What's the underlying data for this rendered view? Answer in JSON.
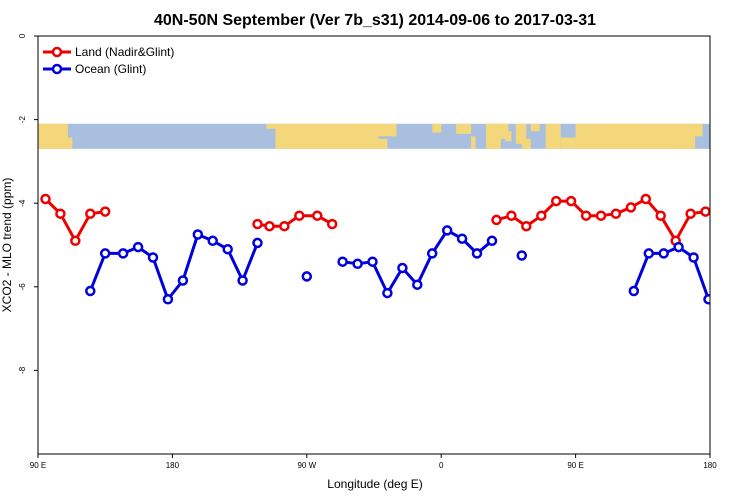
{
  "chart_data": {
    "type": "line",
    "title": "40N-50N September (Ver 7b_s31)   2014-09-06 to 2017-03-31",
    "xlabel": "Longitude (deg E)",
    "ylabel": "XCO2 - MLO trend (ppm)",
    "x_tick_positions": [
      90,
      180,
      270,
      360,
      450,
      540
    ],
    "x_tick_labels": [
      "90 E",
      "180",
      "90 W",
      "0",
      "90 E",
      "180"
    ],
    "y_ticks": [
      0,
      -2,
      -4,
      -6,
      -8
    ],
    "y_tick_labels": [
      "0",
      "-2",
      "-4",
      "-6",
      "-8"
    ],
    "xlim": [
      90,
      540
    ],
    "ylim": [
      -10,
      0
    ],
    "grid": false,
    "legend_position": "top-left",
    "map_strip": {
      "ymin": -2.7,
      "ymax": -2.1,
      "land_color": "#f5d77b",
      "ocean_color": "#a9bfe0"
    },
    "series": [
      {
        "name": "Land (Nadir&Glint)",
        "color": "#ee0000",
        "points": [
          [
            95,
            -3.9
          ],
          [
            105,
            -4.25
          ],
          [
            115,
            -4.9
          ],
          [
            125,
            -4.25
          ],
          [
            135,
            -4.2
          ],
          null,
          [
            237,
            -4.5
          ],
          [
            245,
            -4.55
          ],
          [
            255,
            -4.55
          ],
          [
            265,
            -4.3
          ],
          [
            277,
            -4.3
          ],
          [
            287,
            -4.5
          ],
          null,
          [
            397,
            -4.4
          ],
          [
            407,
            -4.3
          ],
          [
            417,
            -4.55
          ],
          [
            427,
            -4.3
          ],
          [
            437,
            -3.95
          ],
          [
            447,
            -3.95
          ],
          [
            457,
            -4.3
          ],
          [
            467,
            -4.3
          ],
          [
            477,
            -4.25
          ],
          [
            487,
            -4.1
          ],
          [
            497,
            -3.9
          ],
          [
            507,
            -4.3
          ],
          [
            517,
            -4.9
          ],
          [
            527,
            -4.25
          ],
          [
            537,
            -4.2
          ]
        ]
      },
      {
        "name": "Ocean (Glint)",
        "color": "#0000dd",
        "points": [
          [
            125,
            -6.1
          ],
          [
            135,
            -5.2
          ],
          [
            147,
            -5.2
          ],
          [
            157,
            -5.05
          ],
          [
            167,
            -5.3
          ],
          [
            177,
            -6.3
          ],
          [
            187,
            -5.85
          ],
          [
            197,
            -4.75
          ],
          [
            207,
            -4.9
          ],
          [
            217,
            -5.1
          ],
          [
            227,
            -5.85
          ],
          [
            237,
            -4.95
          ],
          null,
          [
            270,
            -5.75
          ],
          null,
          [
            294,
            -5.4
          ],
          [
            304,
            -5.45
          ],
          [
            314,
            -5.4
          ],
          [
            324,
            -6.15
          ],
          [
            334,
            -5.55
          ],
          [
            344,
            -5.95
          ],
          [
            354,
            -5.2
          ],
          [
            364,
            -4.65
          ],
          [
            374,
            -4.85
          ],
          [
            384,
            -5.2
          ],
          [
            394,
            -4.9
          ],
          null,
          [
            414,
            -5.25
          ],
          null,
          [
            489,
            -6.1
          ],
          [
            499,
            -5.2
          ],
          [
            509,
            -5.2
          ],
          [
            519,
            -5.05
          ],
          [
            529,
            -5.3
          ],
          [
            539,
            -6.3
          ]
        ]
      }
    ]
  }
}
